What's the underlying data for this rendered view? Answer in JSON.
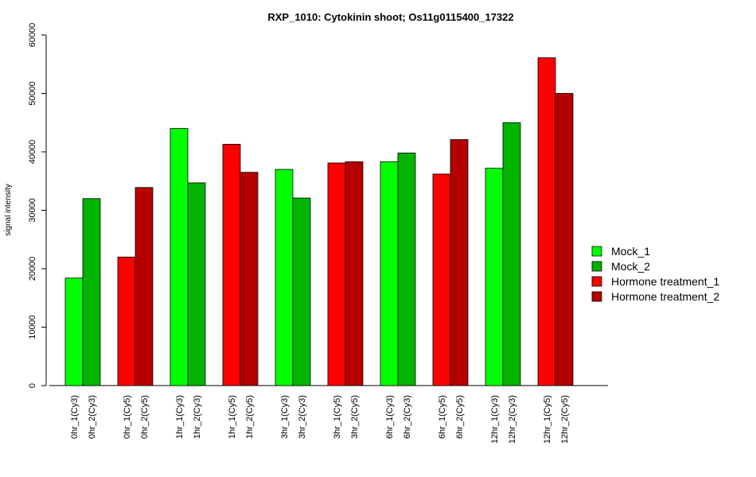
{
  "chart_data": {
    "type": "bar",
    "title": "RXP_1010: Cytokinin shoot; Os11g0115400_17322",
    "xlabel": "",
    "ylabel": "signal intensity",
    "ylim": [
      0,
      60000
    ],
    "yticks": [
      0,
      10000,
      20000,
      30000,
      40000,
      50000,
      60000
    ],
    "legend_position": "right",
    "series_defs": [
      {
        "name": "Mock_1",
        "color": "#00ff00"
      },
      {
        "name": "Mock_2",
        "color": "#00b400"
      },
      {
        "name": "Hormone treatment_1",
        "color": "#ff0000"
      },
      {
        "name": "Hormone treatment_2",
        "color": "#b40000"
      }
    ],
    "bars": [
      {
        "label": "0hr_1(Cy3)",
        "value": 18400,
        "series": 0
      },
      {
        "label": "0hr_2(Cy3)",
        "value": 32000,
        "series": 1
      },
      {
        "label": "0hr_1(Cy5)",
        "value": 22000,
        "series": 2
      },
      {
        "label": "0hr_2(Cy5)",
        "value": 33900,
        "series": 3
      },
      {
        "label": "1hr_1(Cy3)",
        "value": 44000,
        "series": 0
      },
      {
        "label": "1hr_2(Cy3)",
        "value": 34700,
        "series": 1
      },
      {
        "label": "1hr_1(Cy5)",
        "value": 41300,
        "series": 2
      },
      {
        "label": "1hr_2(Cy5)",
        "value": 36500,
        "series": 3
      },
      {
        "label": "3hr_1(Cy3)",
        "value": 37000,
        "series": 0
      },
      {
        "label": "3hr_2(Cy3)",
        "value": 32100,
        "series": 1
      },
      {
        "label": "3hr_1(Cy5)",
        "value": 38100,
        "series": 2
      },
      {
        "label": "3hr_2(Cy5)",
        "value": 38300,
        "series": 3
      },
      {
        "label": "6hr_1(Cy3)",
        "value": 38300,
        "series": 0
      },
      {
        "label": "6hr_2(Cy3)",
        "value": 39800,
        "series": 1
      },
      {
        "label": "6hr_1(Cy5)",
        "value": 36200,
        "series": 2
      },
      {
        "label": "6hr_2(Cy5)",
        "value": 42100,
        "series": 3
      },
      {
        "label": "12hr_1(Cy3)",
        "value": 37200,
        "series": 0
      },
      {
        "label": "12hr_2(Cy3)",
        "value": 45000,
        "series": 1
      },
      {
        "label": "12hr_1(Cy5)",
        "value": 56100,
        "series": 2
      },
      {
        "label": "12hr_2(Cy5)",
        "value": 50000,
        "series": 3
      }
    ]
  }
}
